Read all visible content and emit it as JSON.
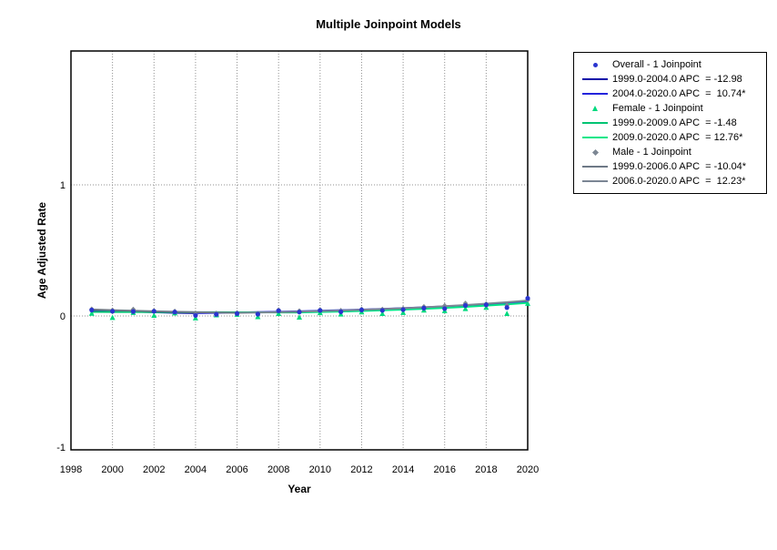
{
  "title": "Multiple Joinpoint Models",
  "axes": {
    "x_label": "Year",
    "y_label": "Age Adjusted Rate",
    "x_ticks": [
      1998,
      2000,
      2002,
      2004,
      2006,
      2008,
      2010,
      2012,
      2014,
      2016,
      2018,
      2020
    ],
    "y_ticks": [
      -1,
      0,
      1
    ]
  },
  "colors": {
    "overall_marker": "#2a35cf",
    "overall_segment1": "#0b0ba8",
    "overall_segment2": "#2424dc",
    "female_marker": "#00d97e",
    "female_segment1": "#00c473",
    "female_segment2": "#00e687",
    "male_marker": "#7d8794",
    "male_segment1": "#6e7986",
    "male_segment2": "#7b8694",
    "gridline": "#909090",
    "frame": "#000000"
  },
  "chart_data": {
    "type": "scatter",
    "title": "Multiple Joinpoint Models",
    "xlabel": "Year",
    "ylabel": "Age Adjusted Rate",
    "xlim": [
      1998,
      2021
    ],
    "ylim": [
      -1,
      2
    ],
    "x_ticks": [
      1998,
      2000,
      2002,
      2004,
      2006,
      2008,
      2010,
      2012,
      2014,
      2016,
      2018,
      2020
    ],
    "y_ticks": [
      -1,
      0,
      1
    ],
    "grid": "dotted; vertical at even years, horizontal at y=0 and y=1",
    "legend_position": "outside-right-top",
    "x": [
      1999,
      2000,
      2001,
      2002,
      2003,
      2004,
      2005,
      2006,
      2007,
      2008,
      2009,
      2010,
      2011,
      2012,
      2013,
      2014,
      2015,
      2016,
      2017,
      2018,
      2019,
      2020
    ],
    "series": [
      {
        "name": "Overall - 1 Joinpoint",
        "marker": "circle",
        "joinpoint": 2004.0,
        "apc": [
          {
            "range": "1999.0-2004.0",
            "value": -12.98,
            "significant": false
          },
          {
            "range": "2004.0-2020.0",
            "value": 10.74,
            "significant": true
          }
        ],
        "observed": [
          0.045,
          0.036,
          0.034,
          0.036,
          0.03,
          0.004,
          0.012,
          0.018,
          0.014,
          0.04,
          0.03,
          0.042,
          0.032,
          0.046,
          0.042,
          0.048,
          0.06,
          0.056,
          0.08,
          0.085,
          0.064,
          0.135
        ],
        "fitted": [
          0.043,
          0.0374,
          0.0326,
          0.0283,
          0.0247,
          0.0215,
          0.0238,
          0.0263,
          0.0292,
          0.0323,
          0.0358,
          0.0396,
          0.0439,
          0.0486,
          0.0538,
          0.0596,
          0.066,
          0.0731,
          0.0809,
          0.0896,
          0.0992,
          0.1099
        ]
      },
      {
        "name": "Female - 1 Joinpoint",
        "marker": "triangle",
        "joinpoint": 2009.0,
        "apc": [
          {
            "range": "1999.0-2009.0",
            "value": -1.48,
            "significant": false
          },
          {
            "range": "2009.0-2020.0",
            "value": 12.76,
            "significant": true
          }
        ],
        "observed": [
          0.02,
          -0.012,
          0.026,
          0.004,
          0.022,
          -0.016,
          0.008,
          0.012,
          -0.006,
          0.018,
          -0.01,
          0.024,
          0.014,
          0.03,
          0.018,
          0.026,
          0.044,
          0.04,
          0.055,
          0.065,
          0.018,
          0.095
        ],
        "fitted": [
          0.031,
          0.0305,
          0.0301,
          0.0296,
          0.0292,
          0.0288,
          0.0283,
          0.0279,
          0.0275,
          0.0271,
          0.0267,
          0.0301,
          0.0339,
          0.0383,
          0.0431,
          0.0486,
          0.0549,
          0.0619,
          0.0698,
          0.0787,
          0.0887,
          0.1
        ]
      },
      {
        "name": "Male - 1 Joinpoint",
        "marker": "diamond",
        "joinpoint": 2006.0,
        "apc": [
          {
            "range": "1999.0-2006.0",
            "value": -10.04,
            "significant": true
          },
          {
            "range": "2006.0-2020.0",
            "value": 12.23,
            "significant": true
          }
        ],
        "observed": [
          0.052,
          0.044,
          0.05,
          0.04,
          0.036,
          0.012,
          0.02,
          0.024,
          0.018,
          0.046,
          0.038,
          0.048,
          0.042,
          0.052,
          0.05,
          0.056,
          0.07,
          0.078,
          0.096,
          0.092,
          0.082,
          0.122
        ],
        "fitted": [
          0.0492,
          0.0443,
          0.0398,
          0.0358,
          0.0322,
          0.029,
          0.0261,
          0.0235,
          0.0264,
          0.0296,
          0.0332,
          0.0373,
          0.0418,
          0.0469,
          0.0527,
          0.0591,
          0.0663,
          0.0745,
          0.0836,
          0.0938,
          0.1052,
          0.1181
        ]
      }
    ]
  },
  "legend": {
    "items": [
      {
        "kind": "circle",
        "series": "overall",
        "color": "#2a35cf",
        "label": "Overall - 1 Joinpoint"
      },
      {
        "kind": "line",
        "series": "overall",
        "color": "#0b0ba8",
        "label": "1999.0-2004.0 APC  = -12.98"
      },
      {
        "kind": "line",
        "series": "overall",
        "color": "#2424dc",
        "label": "2004.0-2020.0 APC  =  10.74*"
      },
      {
        "kind": "triangle",
        "series": "female",
        "color": "#00d97e",
        "label": "Female - 1 Joinpoint"
      },
      {
        "kind": "line",
        "series": "female",
        "color": "#00c473",
        "label": "1999.0-2009.0 APC  = -1.48"
      },
      {
        "kind": "line",
        "series": "female",
        "color": "#00e687",
        "label": "2009.0-2020.0 APC  = 12.76*"
      },
      {
        "kind": "diamond",
        "series": "male",
        "color": "#7d8794",
        "label": "Male - 1 Joinpoint"
      },
      {
        "kind": "line",
        "series": "male",
        "color": "#6e7986",
        "label": "1999.0-2006.0 APC  = -10.04*"
      },
      {
        "kind": "line",
        "series": "male",
        "color": "#7b8694",
        "label": "2006.0-2020.0 APC  =  12.23*"
      }
    ]
  }
}
